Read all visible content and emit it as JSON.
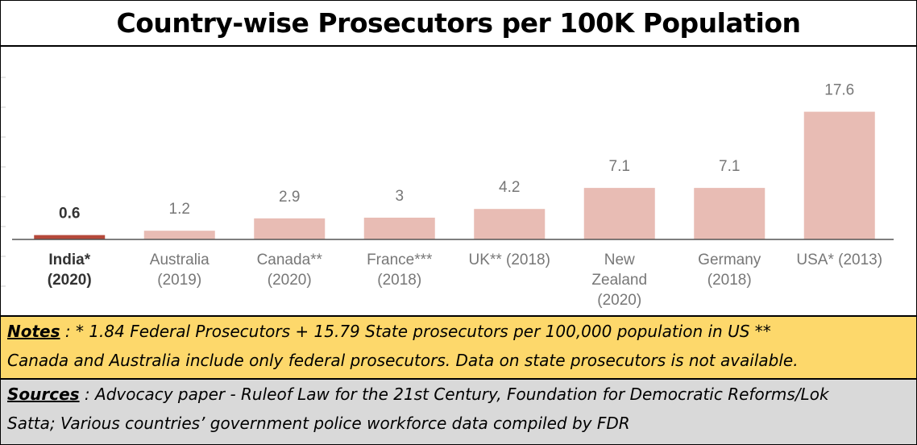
{
  "title": "Country-wise Prosecutors per 100K Population",
  "chart_data": {
    "type": "bar",
    "title": "Country-wise Prosecutors per 100K Population",
    "categories": [
      [
        "India*",
        "(2020)"
      ],
      [
        "Australia",
        "(2019)"
      ],
      [
        "Canada**",
        "(2020)"
      ],
      [
        "France***",
        "(2018)"
      ],
      [
        "UK** (2018)"
      ],
      [
        "New",
        "Zealand",
        "(2020)"
      ],
      [
        "Germany",
        "(2018)"
      ],
      [
        "USA* (2013)"
      ]
    ],
    "values": [
      0.6,
      1.2,
      2.9,
      3,
      4.2,
      7.1,
      7.1,
      17.6
    ],
    "value_labels": [
      "0.6",
      "1.2",
      "2.9",
      "3",
      "4.2",
      "7.1",
      "7.1",
      "17.6"
    ],
    "highlight_index": 0,
    "colors": {
      "bar": "#e8bcb4",
      "highlight_bar": "#b5483a",
      "baseline": "#555555",
      "label": "#777777",
      "highlight_label": "#333333"
    },
    "ylim": [
      0,
      20
    ],
    "grid": false,
    "legend": "none"
  },
  "notes": {
    "lead": "Notes",
    "line1": " : * 1.84 Federal Prosecutors + 15.79 State prosecutors per 100,000 population in US **",
    "line2": "Canada and Australia include only federal prosecutors. Data on state prosecutors is not available."
  },
  "sources": {
    "lead": "Sources",
    "line1": " : Advocacy paper - Ruleof Law for the 21st Century, Foundation for Democratic Reforms/Lok",
    "line2": "Satta;  Various countries’ government police workforce data compiled by FDR"
  }
}
